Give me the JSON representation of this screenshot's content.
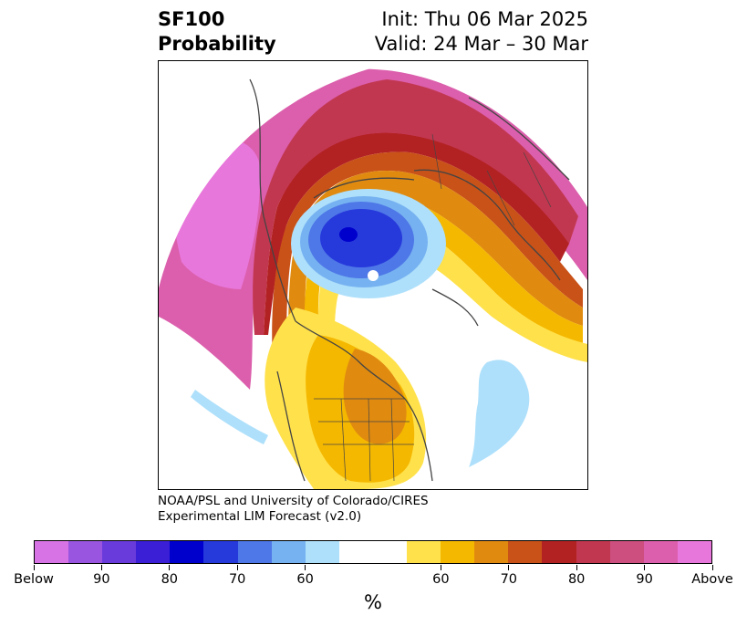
{
  "header": {
    "title_line1": "SF100",
    "title_line2": "Probability",
    "init": "Init: Thu 06 Mar 2025",
    "valid": "Valid: 24 Mar – 30 Mar"
  },
  "credit": {
    "line1": "NOAA/PSL and University of Colorado/CIRES",
    "line2": "Experimental LIM Forecast (v2.0)"
  },
  "colorbar": {
    "unit": "%",
    "colors": [
      "#d873e5",
      "#9955e0",
      "#6a3bdb",
      "#3a1fd6",
      "#0000cd",
      "#2639db",
      "#4e77e7",
      "#76b2f1",
      "#aee0fb",
      "#ffffff",
      "#ffe14b",
      "#f5b800",
      "#e08b10",
      "#c95218",
      "#b32223",
      "#c23750",
      "#cc4f7f",
      "#db5fac",
      "#e877dc"
    ],
    "labels": [
      "Below",
      "90",
      "80",
      "70",
      "60",
      "60",
      "70",
      "80",
      "90",
      "Above"
    ]
  },
  "map": {
    "projection": "north-polar-stereographic",
    "fields": [
      {
        "name": "Above",
        "color": "#e877dc"
      },
      {
        "name": "Below",
        "color": "#aee0fb"
      }
    ]
  }
}
